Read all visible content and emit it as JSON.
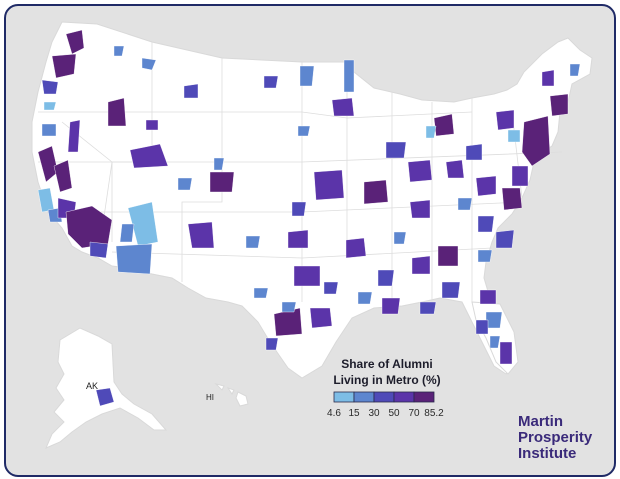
{
  "legend": {
    "title_line1": "Share of Alumni",
    "title_line2": "Living in Metro (%)",
    "ticks": [
      "4.6",
      "15",
      "30",
      "50",
      "70",
      "85.2"
    ],
    "colors": [
      "#7dbde6",
      "#5d86cf",
      "#4f4ab8",
      "#5b34a9",
      "#5a2278"
    ]
  },
  "labels": {
    "alaska": "AK",
    "hawaii": "HI"
  },
  "brand": {
    "line1": "Martin",
    "line2": "Prosperity",
    "line3": "Institute"
  },
  "colors": {
    "background": "#e2e2e2",
    "frame_border": "#1f2a66",
    "land": "#ffffff",
    "brand": "#3a2a7a"
  }
}
